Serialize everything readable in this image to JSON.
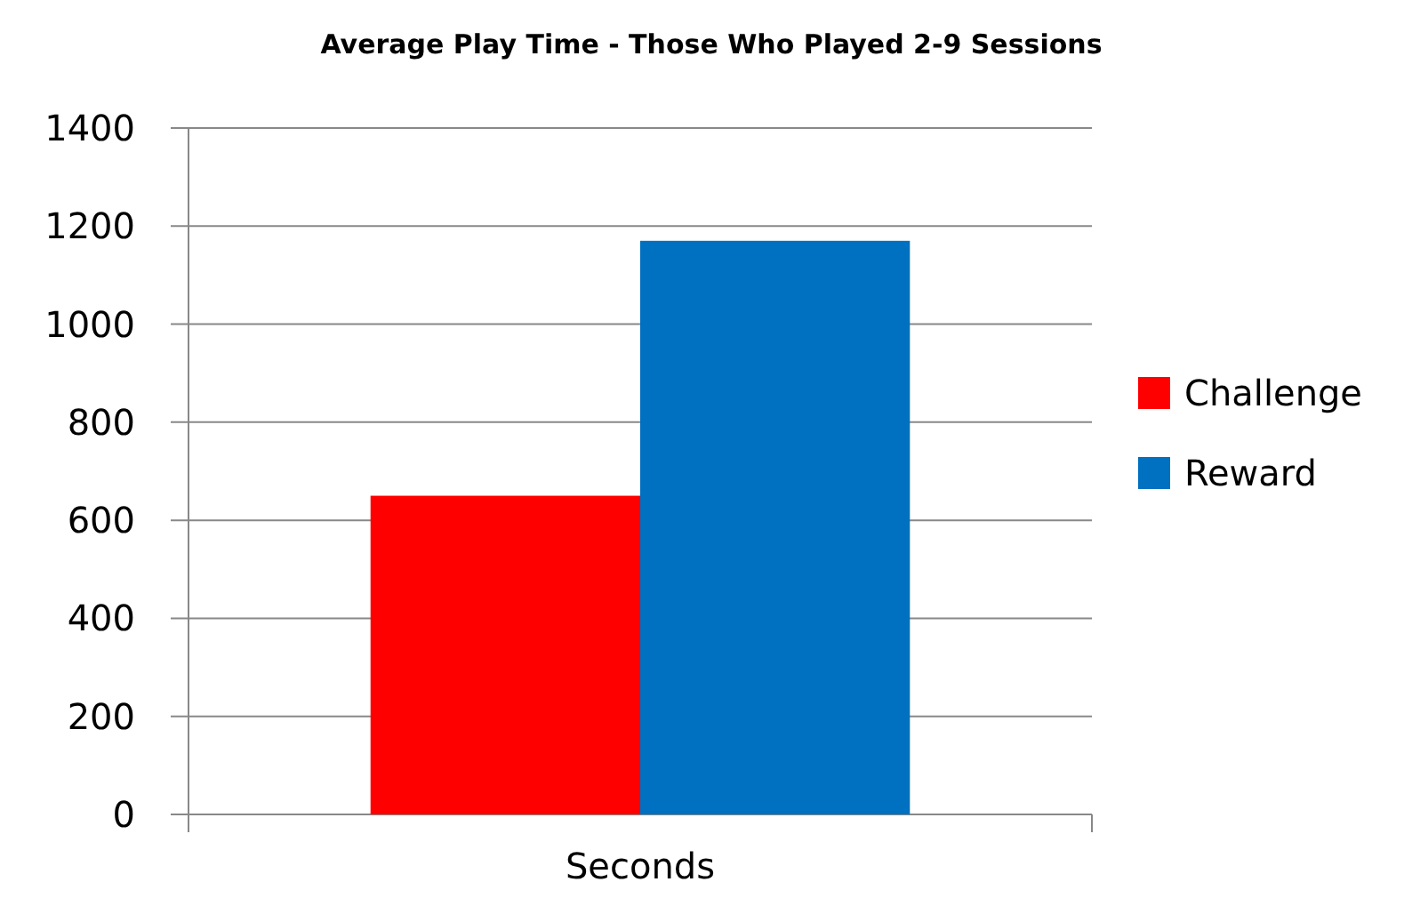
{
  "chart_data": {
    "type": "bar",
    "title": "Average Play Time - Those Who Played 2-9 Sessions",
    "categories": [
      "Seconds"
    ],
    "series": [
      {
        "name": "Challenge",
        "color": "#ff0000",
        "values": [
          650
        ]
      },
      {
        "name": "Reward",
        "color": "#0070c0",
        "values": [
          1170
        ]
      }
    ],
    "ylim": [
      0,
      1400
    ],
    "yticks": [
      0,
      200,
      400,
      600,
      800,
      1000,
      1200,
      1400
    ],
    "grid": "y",
    "legend": "right"
  }
}
